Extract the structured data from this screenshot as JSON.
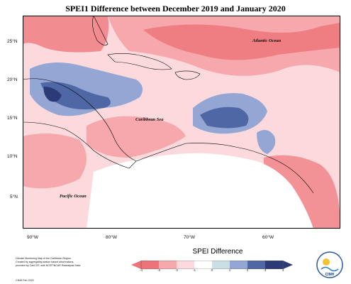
{
  "title": "SPEI1 Difference between December 2019 and January 2020",
  "map": {
    "lon_labels": [
      "90°W",
      "80°W",
      "70°W",
      "60°W"
    ],
    "lat_labels": [
      "25°N",
      "20°N",
      "15°N",
      "10°N",
      "5°N"
    ],
    "ocean_labels": {
      "atlantic": "Atlantic Ocean",
      "caribbean": "Caribbean Sea",
      "pacific": "Pacific Ocean"
    },
    "colors": {
      "neg_strong": "#ee7378",
      "neg_mid": "#f6a8ac",
      "neg_light": "#fbd9dc",
      "neutral": "#ffffff",
      "pos_light": "#c9dfe3",
      "pos_mid": "#93a6d4",
      "pos_strong": "#5067a5",
      "pos_darkest": "#2c3a78"
    }
  },
  "credit": {
    "lines": [
      "Climate Monitoring Map of the Caribbean Region.",
      "Created by aggregating station based observations,",
      "provided by CariCOF, with NCEP/NCAR Reanalysis Data."
    ],
    "date": "CIMH Feb-2020"
  },
  "legend": {
    "title": "SPEI Difference",
    "ticks": [
      "-4",
      "-3",
      "-2",
      "-1",
      "0",
      "1",
      "2",
      "3",
      "4"
    ],
    "colors": [
      "#ee7378",
      "#f6a8ac",
      "#fbd9dc",
      "#ffffff",
      "#c9dfe3",
      "#93a6d4",
      "#5067a5",
      "#2c3a78"
    ]
  },
  "logo": {
    "text": "CIMH"
  }
}
